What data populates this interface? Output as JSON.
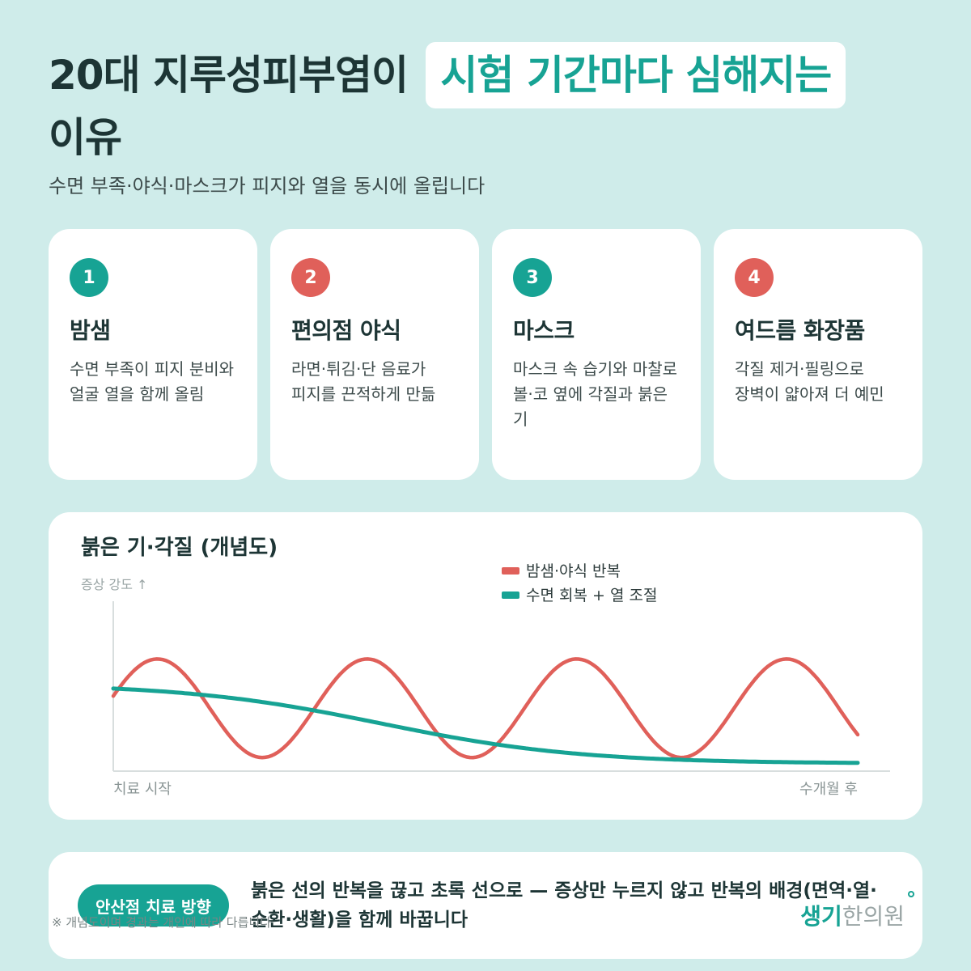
{
  "header": {
    "title_main": "20대 지루성피부염이",
    "title_highlight": "시험 기간마다 심해지는",
    "title_tail": "이유",
    "subtitle": "수면 부족·야식·마스크가 피지와 열을 동시에 올립니다"
  },
  "colors": {
    "teal": "#17a394",
    "red": "#e0605a",
    "background": "#cfecea"
  },
  "cards": [
    {
      "number": "1",
      "title": "밤샘",
      "desc": "수면 부족이 피지 분비와 얼굴 열을 함께 올림",
      "color": "teal"
    },
    {
      "number": "2",
      "title": "편의점 야식",
      "desc": "라면·튀김·단 음료가 피지를 끈적하게 만듦",
      "color": "red"
    },
    {
      "number": "3",
      "title": "마스크",
      "desc": "마스크 속 습기와 마찰로 볼·코 옆에 각질과 붉은 기",
      "color": "teal"
    },
    {
      "number": "4",
      "title": "여드름 화장품",
      "desc": "각질 제거·필링으로 장벽이 얇아져 더 예민",
      "color": "red"
    }
  ],
  "chart_data": {
    "type": "line",
    "title": "붉은 기·각질 (개념도)",
    "ylabel": "증상 강도 ↑",
    "x_start_label": "치료 시작",
    "x_end_label": "수개월 후",
    "legend_position": "top-right",
    "grid": false,
    "x": [
      0,
      0.25,
      0.5,
      0.75,
      1
    ],
    "series": [
      {
        "name": "밤샘·야식 반복",
        "color": "#e0605a",
        "description_shape": "oscillating",
        "values": [
          0.55,
          0.2,
          0.55,
          0.2,
          0.55
        ]
      },
      {
        "name": "수면 회복 + 열 조절",
        "color": "#17a394",
        "description_shape": "declining",
        "values": [
          0.55,
          0.48,
          0.25,
          0.1,
          0.05
        ]
      }
    ]
  },
  "bottom": {
    "pill_label": "안산점 치료 방향",
    "text": "붉은 선의 반복을 끊고 초록 선으로 — 증상만 누르지 않고 반복의 배경(면역·열·순환·생활)을 함께 바꿉니다",
    "footnote": "※ 개념도이며 경과는 개인에 따라 다릅니다",
    "logo_primary": "생기",
    "logo_secondary": "한의원"
  }
}
